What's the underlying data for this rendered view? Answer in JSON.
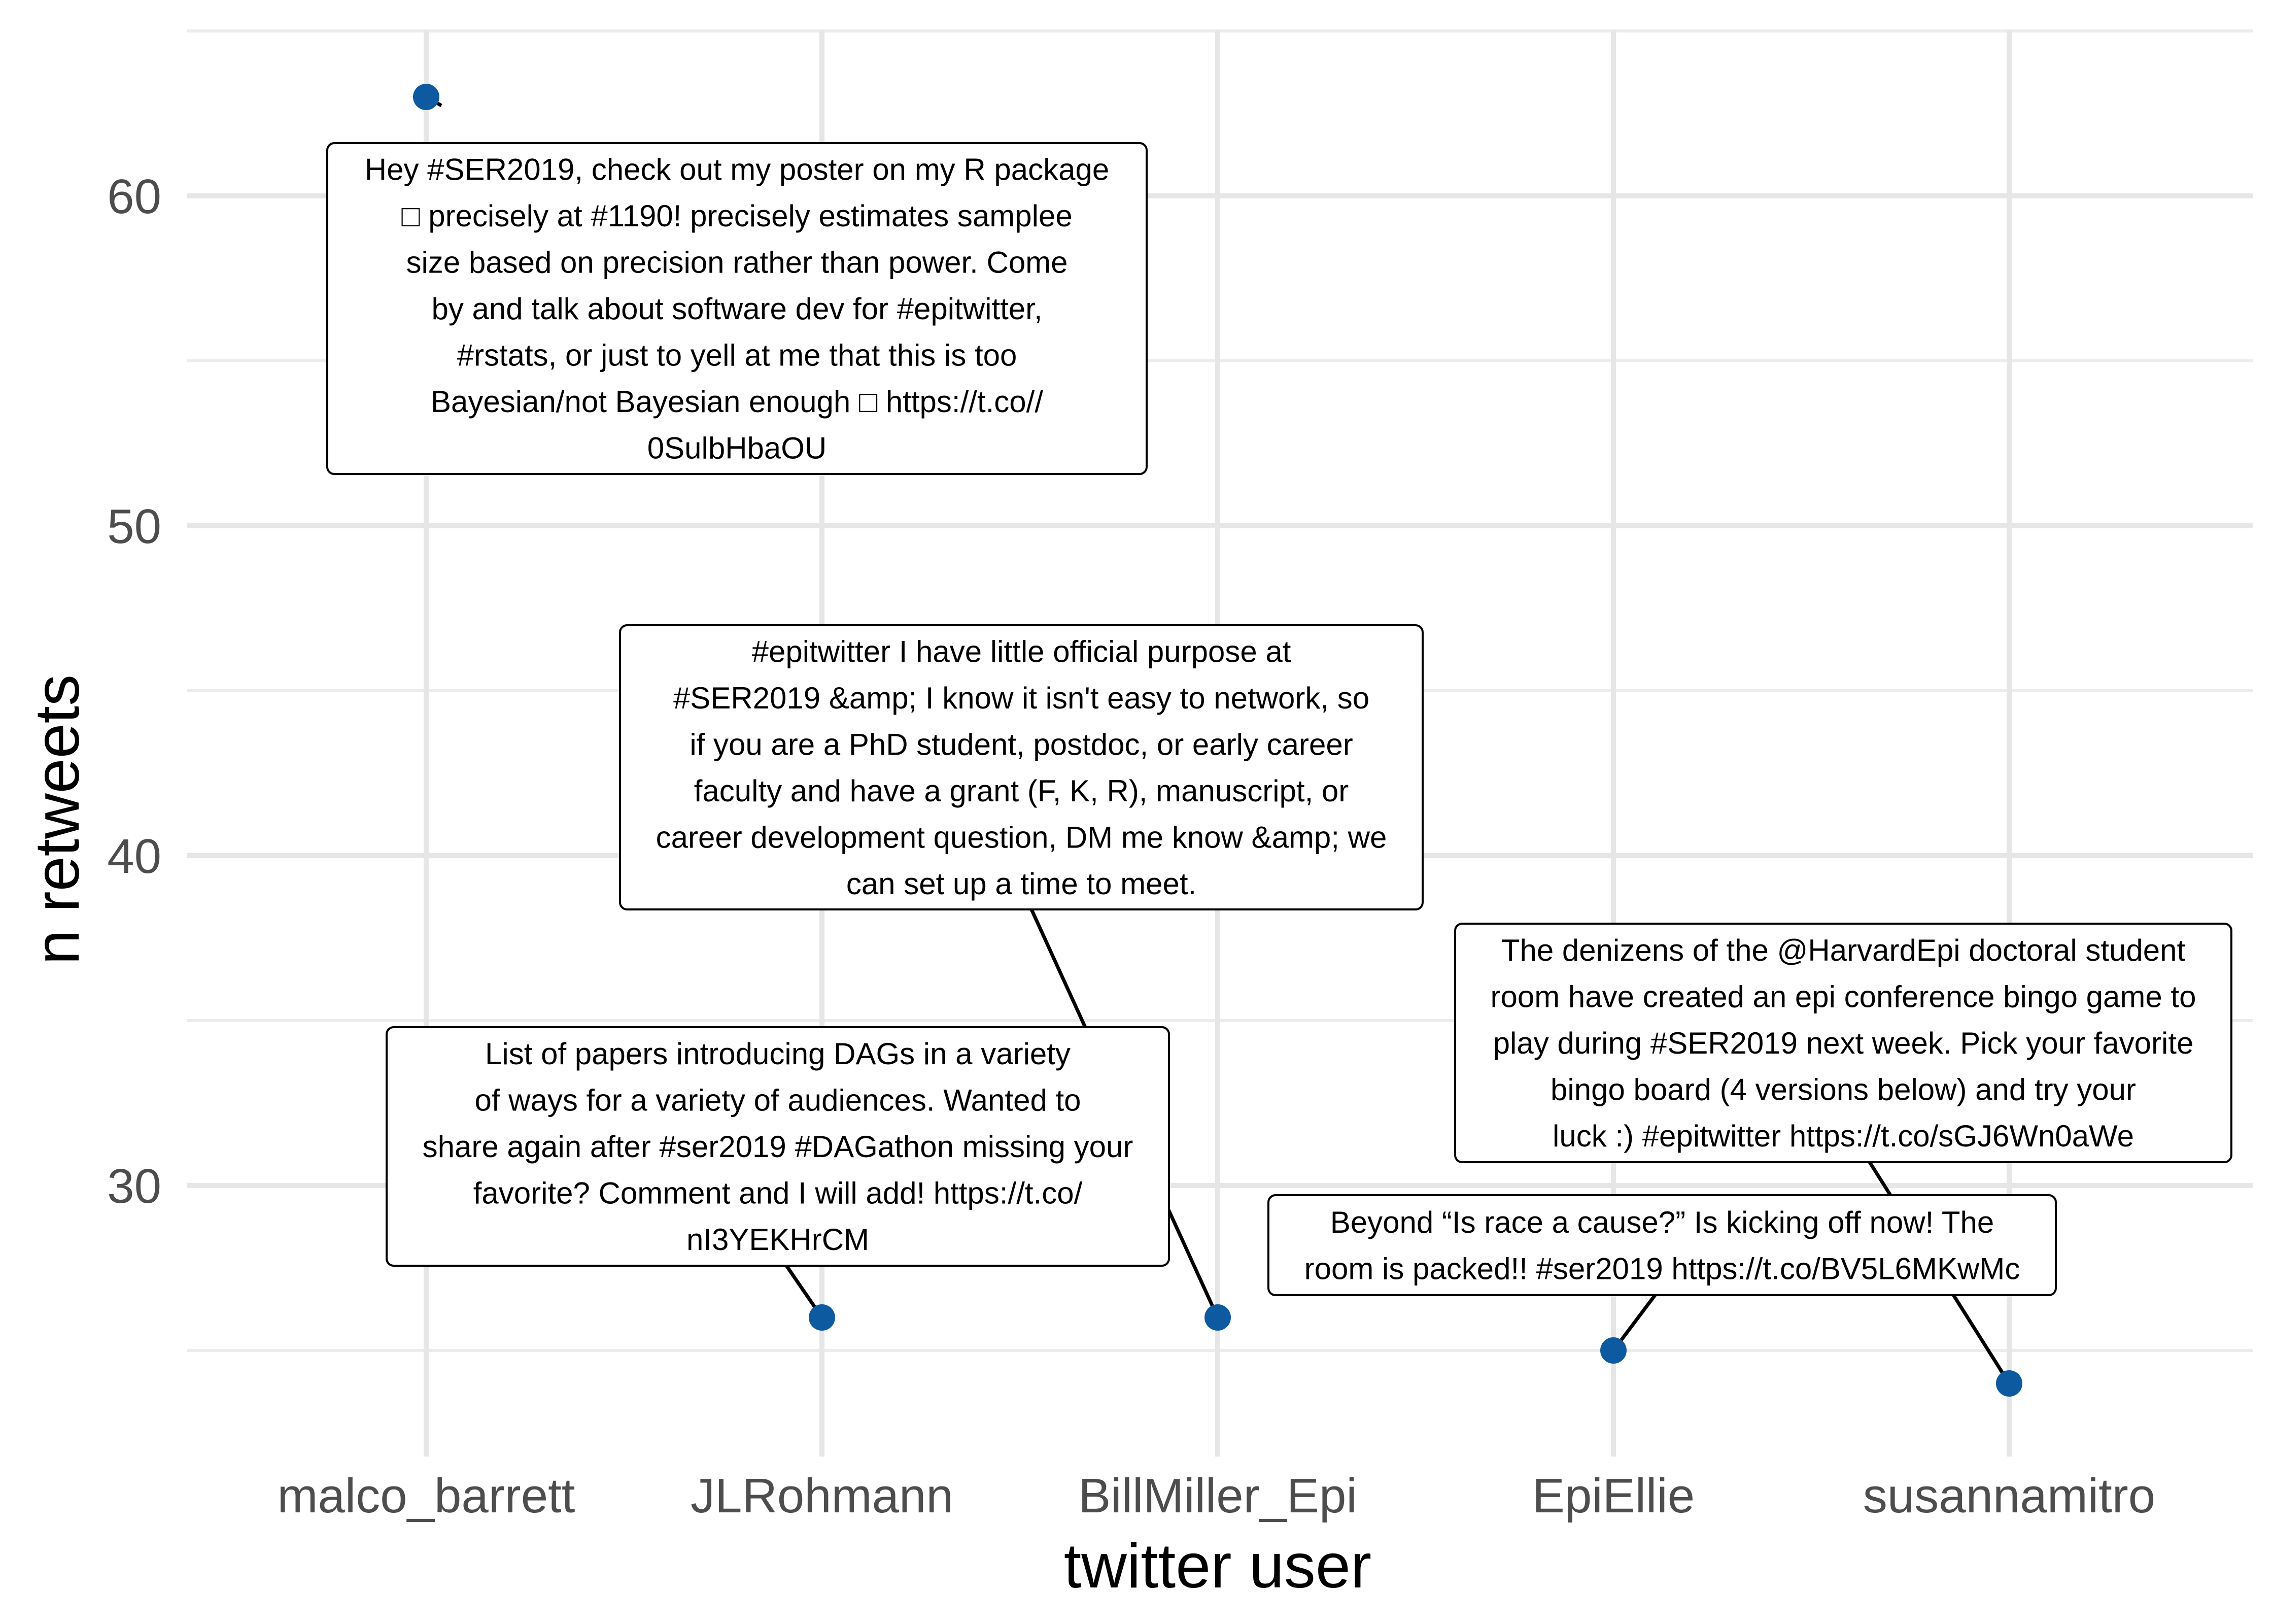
{
  "chart_data": {
    "type": "scatter",
    "xlabel": "twitter user",
    "ylabel": "n retweets",
    "categories": [
      "malco_barrett",
      "JLRohmann",
      "BillMiller_Epi",
      "EpiEllie",
      "susannamitro"
    ],
    "values": [
      63,
      26,
      26,
      25,
      24
    ],
    "ylim": [
      20,
      65
    ],
    "yticks": [
      30,
      40,
      50,
      60
    ],
    "grid": true,
    "point_color": "#0e5aa0",
    "annotations": [
      {
        "category": "malco_barrett",
        "lines": [
          "Hey #SER2019, check out my poster on my R package",
          "□ precisely at #1190! precisely estimates samplee",
          "size based on precision rather than power. Come",
          "by and talk about software dev for #epitwitter,",
          "#rstats, or just to yell at me that this is too",
          "Bayesian/not Bayesian enough □ https://t.co//",
          "0SulbHbaOU"
        ]
      },
      {
        "category": "JLRohmann",
        "lines": [
          "List of papers introducing DAGs in a variety",
          "of ways for a variety of audiences. Wanted to",
          "share again after #ser2019 #DAGathon missing your",
          "favorite? Comment and I will add! https://t.co/",
          "nI3YEKHrCM"
        ]
      },
      {
        "category": "BillMiller_Epi",
        "lines": [
          "#epitwitter I have little official purpose at",
          "#SER2019 &amp; I know it isn't easy to network, so",
          "if you are a PhD student, postdoc, or early career",
          "faculty and have a grant (F, K, R), manuscript, or",
          "career development question, DM me know &amp; we",
          "can set up a time to meet."
        ]
      },
      {
        "category": "EpiEllie",
        "lines": [
          "Beyond “Is race a cause?” Is kicking off now! The",
          "room is packed!! #ser2019 https://t.co/BV5L6MKwMc"
        ]
      },
      {
        "category": "susannamitro",
        "lines": [
          "The denizens of the @HarvardEpi doctoral student",
          "room have created an epi conference bingo game to",
          "play during #SER2019 next week. Pick your favorite",
          "bingo board (4 versions below) and try your",
          "luck :) #epitwitter https://t.co/sGJ6Wn0aWe"
        ]
      }
    ]
  }
}
